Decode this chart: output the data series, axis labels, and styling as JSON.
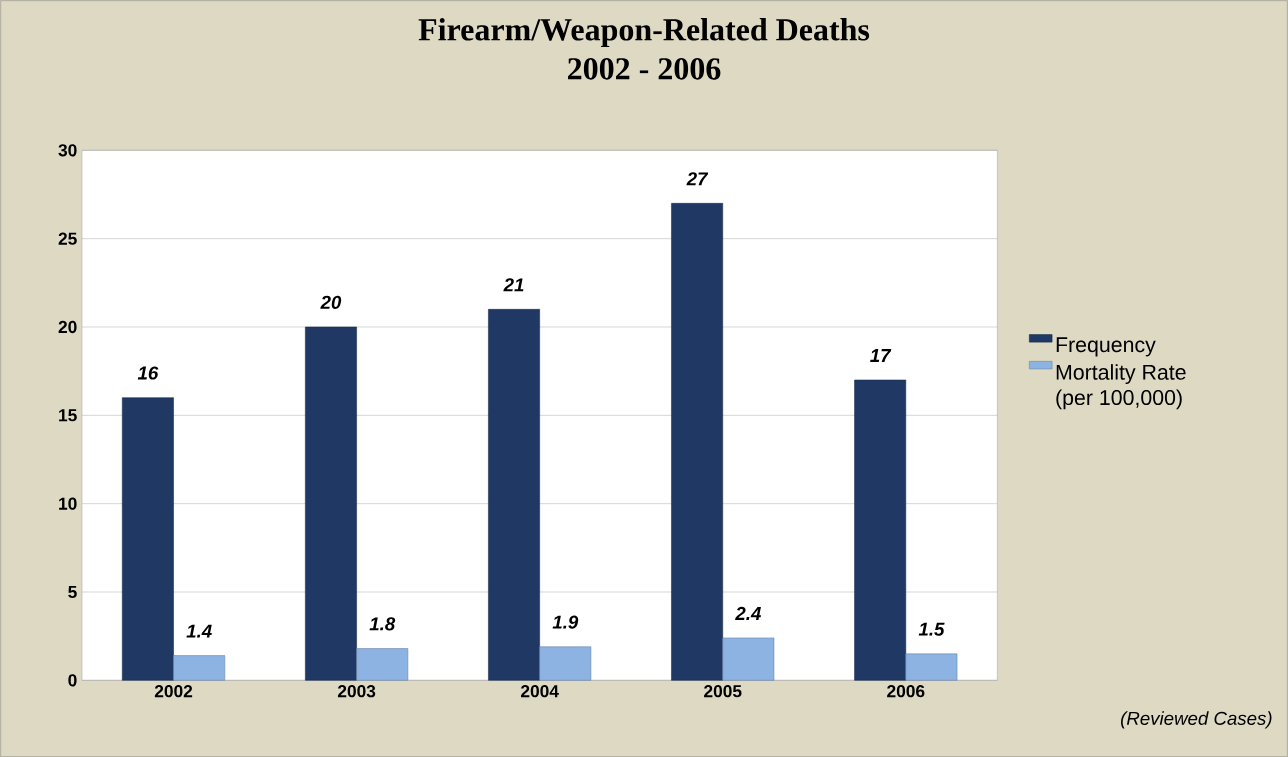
{
  "chart_data": {
    "type": "bar",
    "title": "Firearm/Weapon-Related Deaths",
    "subtitle": "2002 - 2006",
    "categories": [
      "2002",
      "2003",
      "2004",
      "2005",
      "2006"
    ],
    "series": [
      {
        "name": "Frequency",
        "color": "#1f3864",
        "values": [
          16,
          20,
          21,
          27,
          17
        ]
      },
      {
        "name": "Mortality Rate (per 100,000)",
        "color": "#8db3e2",
        "values": [
          1.4,
          1.8,
          1.9,
          2.4,
          1.5
        ]
      }
    ],
    "ylim": [
      0,
      30
    ],
    "yticks": [
      0,
      5,
      10,
      15,
      20,
      25,
      30
    ],
    "grid": "y",
    "legend": "right",
    "data_labels": true,
    "annotations": [
      "(Reviewed Cases)"
    ]
  }
}
